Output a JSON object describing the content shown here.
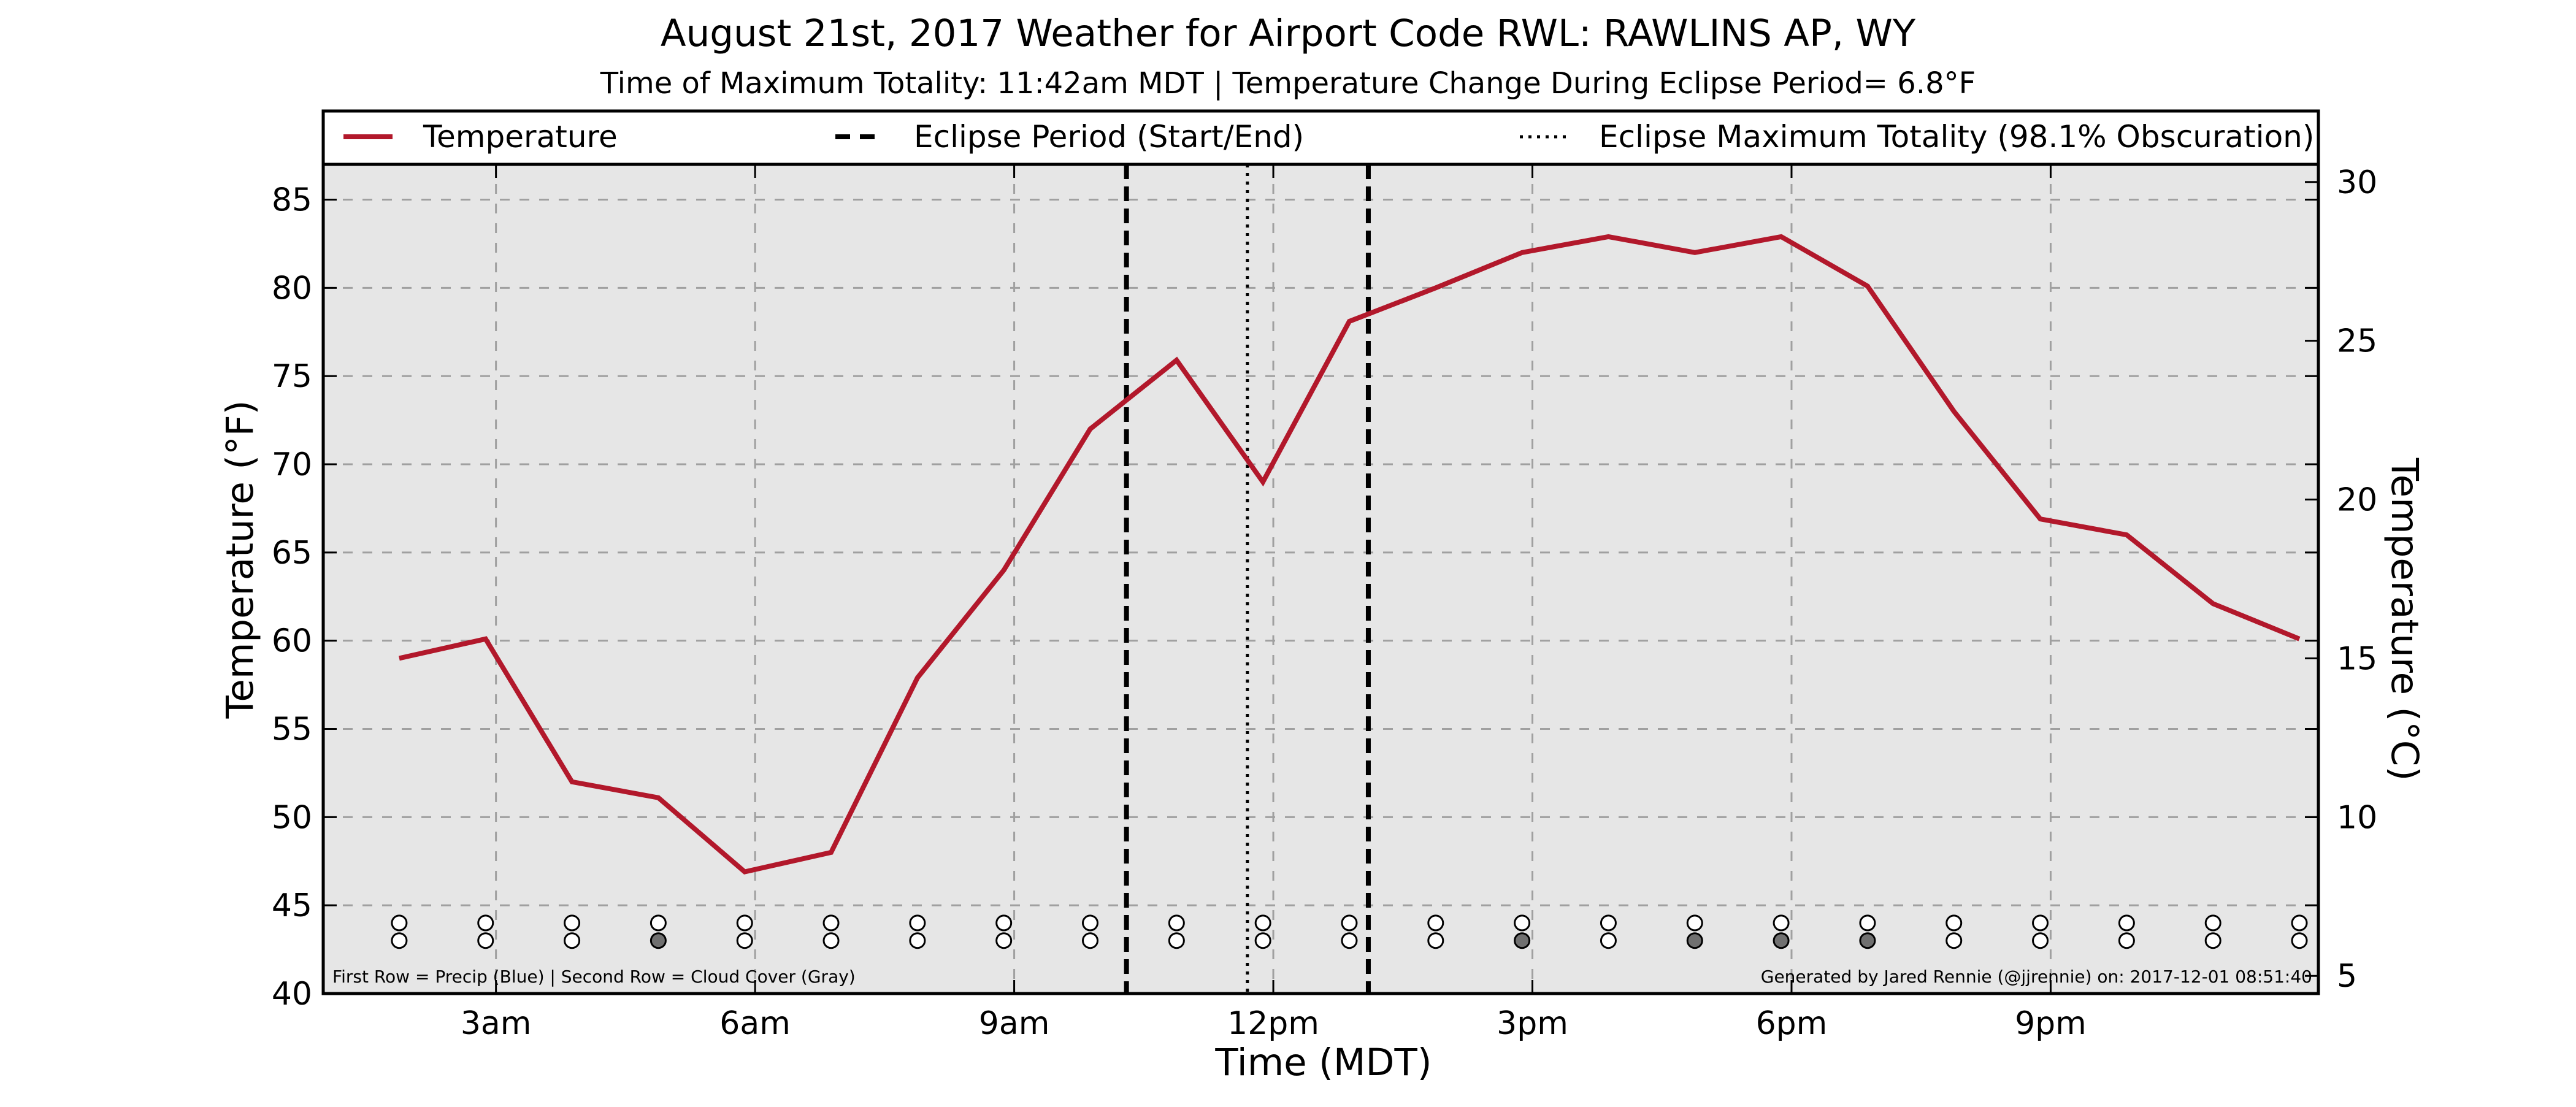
{
  "chart_data": {
    "type": "line",
    "title": "August 21st, 2017 Weather for Airport Code RWL: RAWLINS AP, WY",
    "subtitle": "Time of Maximum Totality: 11:42am MDT | Temperature Change During Eclipse Period= 6.8$^\\circ$F",
    "subtitle_display": "Time of Maximum Totality: 11:42am MDT | Temperature Change During Eclipse Period= 6.8°F",
    "xlabel": "Time (MDT)",
    "ylabel": "Temperature ($^\\circ$F)",
    "ylabel_display": "Temperature (°F)",
    "ylabel_right": "Temperature (°C)",
    "xlim": [
      0,
      23.1
    ],
    "ylim": [
      40,
      87
    ],
    "ylim_right": [
      4.44,
      30.56
    ],
    "x_ticks": [
      {
        "x": 2,
        "label": "3am"
      },
      {
        "x": 5,
        "label": "6am"
      },
      {
        "x": 8,
        "label": "9am"
      },
      {
        "x": 11,
        "label": "12pm"
      },
      {
        "x": 14,
        "label": "3pm"
      },
      {
        "x": 17,
        "label": "6pm"
      },
      {
        "x": 20,
        "label": "9pm"
      }
    ],
    "y_ticks": [
      40,
      45,
      50,
      55,
      60,
      65,
      70,
      75,
      80,
      85
    ],
    "y_ticks_right": [
      5,
      10,
      15,
      20,
      25,
      30
    ],
    "grid": true,
    "series": [
      {
        "name": "Temperature",
        "color": "#b2182b",
        "x": [
          0.88,
          1.88,
          2.88,
          3.88,
          4.88,
          5.88,
          6.88,
          7.88,
          8.88,
          9.88,
          10.88,
          11.88,
          12.88,
          13.88,
          14.88,
          15.88,
          16.88,
          17.88,
          18.88,
          19.88,
          20.88,
          21.88,
          22.88
        ],
        "y": [
          59,
          60.1,
          52,
          51.1,
          46.9,
          48,
          57.9,
          64,
          72,
          75.9,
          69,
          78.1,
          80,
          82,
          82.9,
          82,
          82.9,
          80.1,
          73,
          66.9,
          66,
          62.1,
          60.1
        ]
      }
    ],
    "eclipse": {
      "start_x": 9.3,
      "end_x": 12.1,
      "max_x": 10.7,
      "start_end_label": "Eclipse Period (Start/End)",
      "max_label": "Eclipse Maximum Totality (98.1% Obscuration)"
    },
    "legend": {
      "placement": "top",
      "entries": [
        "Temperature",
        "Eclipse Period (Start/End)",
        "Eclipse Maximum Totality (98.1% Obscuration)"
      ]
    },
    "markers": {
      "x": [
        0.88,
        1.88,
        2.88,
        3.88,
        4.88,
        5.88,
        6.88,
        7.88,
        8.88,
        9.88,
        10.88,
        11.88,
        12.88,
        13.88,
        14.88,
        15.88,
        16.88,
        17.88,
        18.88,
        19.88,
        20.88,
        21.88,
        22.88
      ],
      "precip_row": [
        0,
        0,
        0,
        0,
        0,
        0,
        0,
        0,
        0,
        0,
        0,
        0,
        0,
        0,
        0,
        0,
        0,
        0,
        0,
        0,
        0,
        0,
        0
      ],
      "cloud_row": [
        0,
        0,
        0,
        1,
        0,
        0,
        0,
        0,
        0,
        0,
        0,
        0,
        0,
        1,
        0,
        1,
        1,
        1,
        0,
        0,
        0,
        0,
        0
      ],
      "precip_y": 44,
      "cloud_y": 43
    },
    "footnote_left": "First Row = Precip (Blue) | Second Row = Cloud Cover (Gray)",
    "footnote_right": "Generated by Jared Rennie (@jjrennie) on: 2017-12-01 08:51:40",
    "colors": {
      "plot_background": "#e6e6e6",
      "line": "#b2182b",
      "grid": "#a0a0a0",
      "cloud_filled": "#707070"
    }
  }
}
